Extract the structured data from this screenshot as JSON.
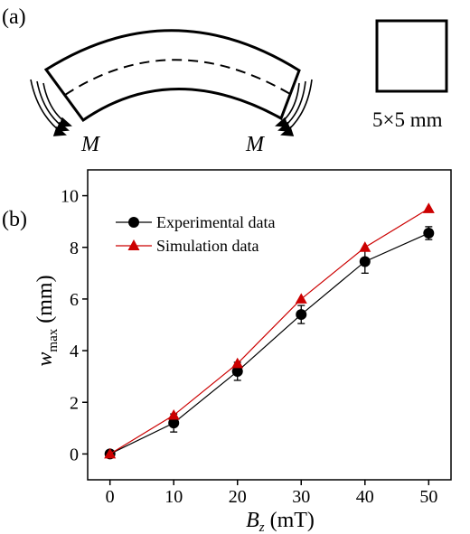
{
  "panel_a": {
    "label": "(a)",
    "moment_label_left": "M",
    "moment_label_right": "M",
    "cross_section_label": "5×5 mm"
  },
  "panel_b": {
    "label": "(b)"
  },
  "chart_data": {
    "type": "line",
    "x": [
      0,
      10,
      20,
      30,
      40,
      50
    ],
    "series": [
      {
        "name": "Experimental data",
        "values": [
          0,
          1.2,
          3.2,
          5.4,
          7.45,
          8.55
        ],
        "errors": [
          0.1,
          0.35,
          0.35,
          0.35,
          0.45,
          0.25
        ],
        "color": "#000000",
        "marker": "circle"
      },
      {
        "name": "Simulation data",
        "values": [
          0,
          1.5,
          3.5,
          6.0,
          8.0,
          9.5
        ],
        "color": "#cc0000",
        "marker": "triangle"
      }
    ],
    "xlabel_main": "B",
    "xlabel_sub": "z",
    "xlabel_unit": " (mT)",
    "ylabel_main": "w",
    "ylabel_sub": "max",
    "ylabel_unit": " (mm)",
    "xlim": [
      -3.5,
      53.5
    ],
    "ylim": [
      -1,
      11
    ],
    "xticks": [
      0,
      10,
      20,
      30,
      40,
      50
    ],
    "yticks": [
      0,
      2,
      4,
      6,
      8,
      10
    ],
    "legend_position": "top-left",
    "grid": false
  }
}
